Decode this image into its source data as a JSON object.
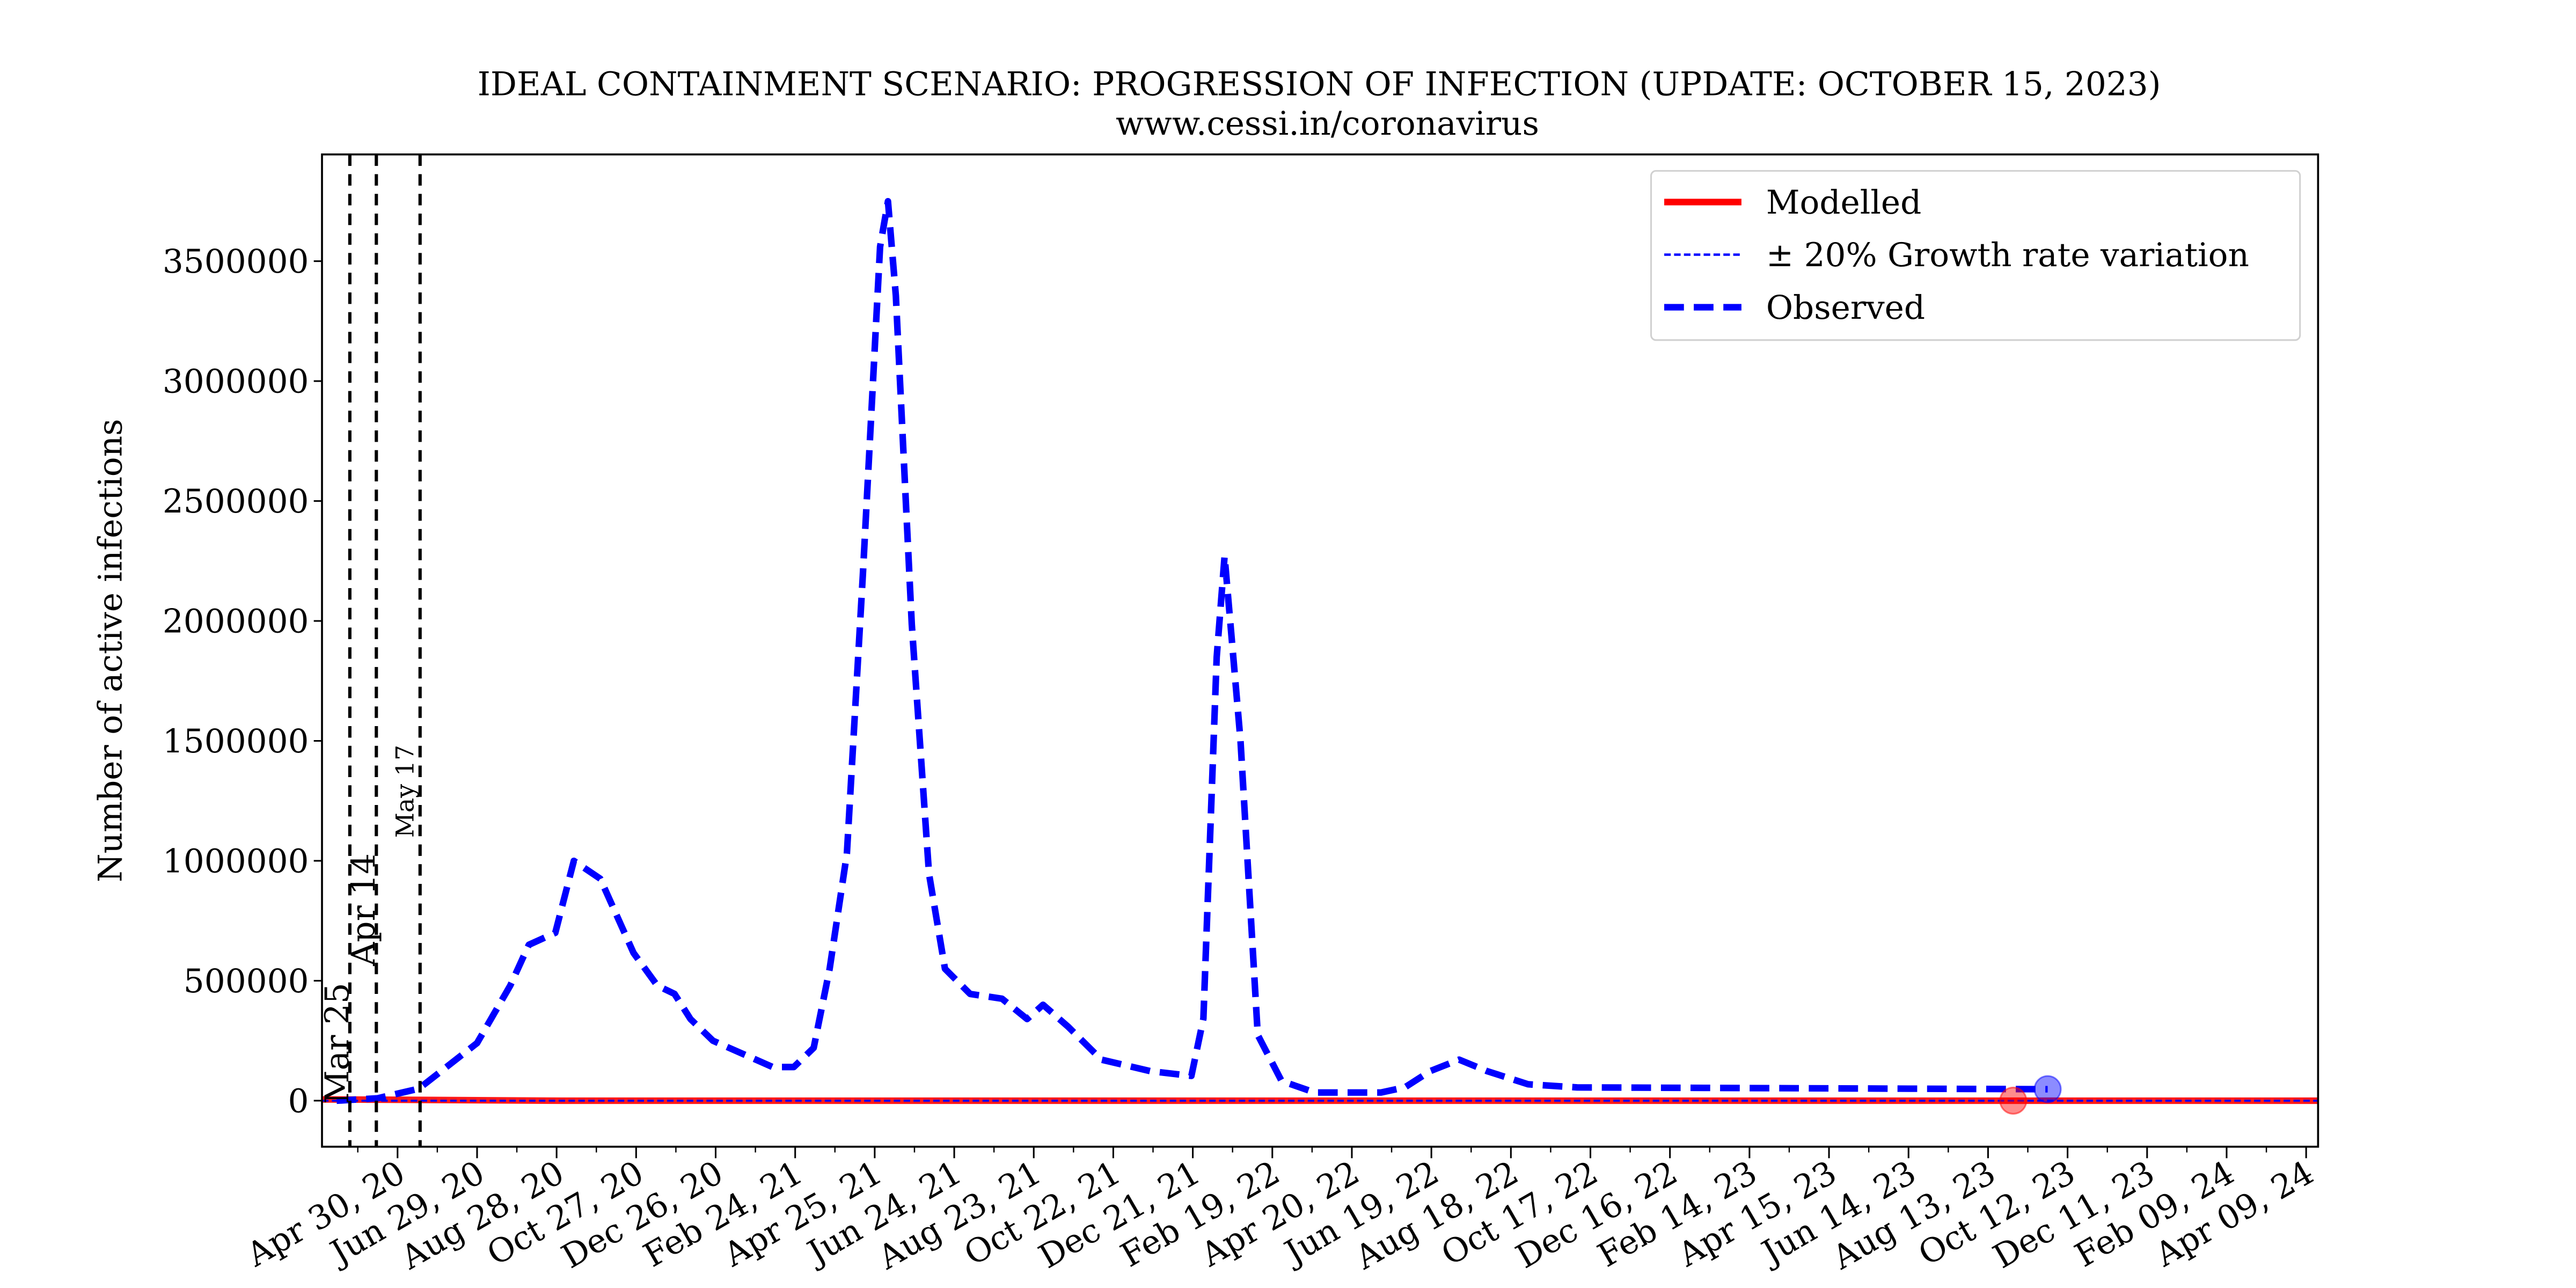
{
  "chart_data": {
    "type": "line",
    "title": "IDEAL CONTAINMENT SCENARIO: PROGRESSION OF INFECTION (UPDATE: OCTOBER 15, 2023)",
    "subtitle": "www.cessi.in/coronavirus",
    "xlabel": "",
    "ylabel": "Number of active infections",
    "xlim": [
      "2020-03-04",
      "2024-04-18"
    ],
    "ylim": [
      -192000,
      3945000
    ],
    "grid": false,
    "legend_position": "top-right",
    "yticks": [
      0,
      500000,
      1000000,
      1500000,
      2000000,
      2500000,
      3000000,
      3500000
    ],
    "ytick_labels": [
      "0",
      "500000",
      "1000000",
      "1500000",
      "2000000",
      "2500000",
      "3000000",
      "3500000"
    ],
    "xticks": [
      "2020-04-30",
      "2020-06-29",
      "2020-08-28",
      "2020-10-27",
      "2020-12-26",
      "2021-02-24",
      "2021-04-25",
      "2021-06-24",
      "2021-08-23",
      "2021-10-22",
      "2021-12-21",
      "2022-02-19",
      "2022-04-20",
      "2022-06-19",
      "2022-08-18",
      "2022-10-17",
      "2022-12-16",
      "2023-02-14",
      "2023-04-15",
      "2023-06-14",
      "2023-08-13",
      "2023-10-12",
      "2023-12-11",
      "2024-02-09",
      "2024-04-09"
    ],
    "xtick_labels": [
      "Apr 30, 20",
      "Jun 29, 20",
      "Aug 28, 20",
      "Oct 27, 20",
      "Dec 26, 20",
      "Feb 24, 21",
      "Apr 25, 21",
      "Jun 24, 21",
      "Aug 23, 21",
      "Oct 22, 21",
      "Dec 21, 21",
      "Feb 19, 22",
      "Apr 20, 22",
      "Jun 19, 22",
      "Aug 18, 22",
      "Oct 17, 22",
      "Dec 16, 22",
      "Feb 14, 23",
      "Apr 15, 23",
      "Jun 14, 23",
      "Aug 13, 23",
      "Oct 12, 23",
      "Dec 11, 23",
      "Feb 09, 24",
      "Apr 09, 24"
    ],
    "vlines": [
      {
        "date": "2020-03-25",
        "label": "Mar 25"
      },
      {
        "date": "2020-04-14",
        "label": "Apr 14"
      },
      {
        "date": "2020-05-17",
        "label": "May 17"
      }
    ],
    "series": [
      {
        "name": "Modelled",
        "color": "#ff0000",
        "style": "solid",
        "x": [
          "2020-03-04",
          "2020-05-17",
          "2020-09-01",
          "2024-04-18"
        ],
        "y": [
          5000,
          3000,
          0,
          0
        ]
      },
      {
        "name": "± 20% Growth rate variation",
        "color": "#0000ff",
        "style": "thin-dashed",
        "x": [
          "2020-03-04",
          "2024-04-18"
        ],
        "y": [
          0,
          0
        ]
      },
      {
        "name": "Observed",
        "color": "#0000ff",
        "style": "thick-dashed",
        "x": [
          "2020-03-15",
          "2020-04-15",
          "2020-05-16",
          "2020-06-29",
          "2020-07-24",
          "2020-08-07",
          "2020-08-27",
          "2020-09-10",
          "2020-09-30",
          "2020-10-25",
          "2020-11-12",
          "2020-11-25",
          "2020-12-07",
          "2020-12-24",
          "2021-02-07",
          "2021-02-23",
          "2021-03-10",
          "2021-03-22",
          "2021-04-04",
          "2021-04-16",
          "2021-04-29",
          "2021-05-05",
          "2021-05-11",
          "2021-05-23",
          "2021-06-05",
          "2021-06-17",
          "2021-07-06",
          "2021-07-30",
          "2021-08-18",
          "2021-08-30",
          "2021-09-18",
          "2021-10-13",
          "2021-11-19",
          "2021-12-20",
          "2021-12-29",
          "2022-01-08",
          "2022-01-14",
          "2022-01-26",
          "2022-02-08",
          "2022-02-26",
          "2022-03-23",
          "2022-05-12",
          "2022-05-30",
          "2022-06-18",
          "2022-07-10",
          "2022-07-31",
          "2022-08-31",
          "2022-10-07",
          "2023-09-27"
        ],
        "y": [
          0,
          10000,
          50000,
          240000,
          480000,
          650000,
          700000,
          1000000,
          925000,
          616000,
          480000,
          445000,
          340000,
          250000,
          140000,
          140000,
          220000,
          550000,
          1030000,
          2190000,
          3560000,
          3750000,
          3356000,
          1986000,
          945000,
          550000,
          445000,
          425000,
          340000,
          400000,
          308000,
          171000,
          123000,
          103000,
          342000,
          1850000,
          2270000,
          1500000,
          274000,
          82000,
          34000,
          34000,
          55000,
          123000,
          171000,
          123000,
          68000,
          55000,
          48000
        ]
      }
    ],
    "markers": [
      {
        "series": "Modelled",
        "date": "2023-09-01",
        "value": 0,
        "color": "#ff0000"
      },
      {
        "series": "Observed",
        "date": "2023-09-27",
        "value": 48000,
        "color": "#0000ff"
      }
    ]
  }
}
